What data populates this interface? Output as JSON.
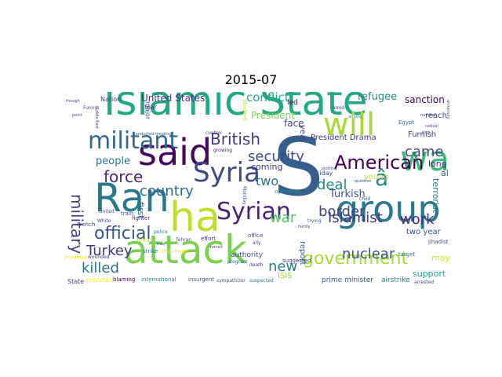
{
  "title": "2015-07",
  "words": [
    {
      "text": "Islamic State",
      "color": "#22a884"
    },
    {
      "text": "said",
      "color": "#46085c"
    },
    {
      "text": "S",
      "color": "#35608d"
    },
    {
      "text": "group",
      "color": "#2a788e"
    },
    {
      "text": "attack",
      "color": "#7ad151"
    },
    {
      "text": "ha",
      "color": "#bddf26"
    },
    {
      "text": "Ran",
      "color": "#2a788e"
    },
    {
      "text": "wa",
      "color": "#3cbb75"
    },
    {
      "text": "will",
      "color": "#a5db36"
    },
    {
      "text": "militant",
      "color": "#31688e"
    },
    {
      "text": "Syria",
      "color": "#3e4989"
    },
    {
      "text": "Syrian",
      "color": "#482475"
    },
    {
      "text": "American",
      "color": "#440154"
    },
    {
      "text": "government",
      "color": "#a5db36"
    },
    {
      "text": "official",
      "color": "#39568c"
    },
    {
      "text": "military",
      "color": "#433e85"
    },
    {
      "text": "security",
      "color": "#3e4989"
    },
    {
      "text": "British",
      "color": "#443a83"
    },
    {
      "text": "force",
      "color": "#482878"
    },
    {
      "text": "country",
      "color": "#31688e"
    },
    {
      "text": "Islamist",
      "color": "#443a83"
    },
    {
      "text": "border",
      "color": "#404588"
    },
    {
      "text": "killed",
      "color": "#2c718e"
    },
    {
      "text": "Turkey",
      "color": "#453781"
    },
    {
      "text": "nuclear",
      "color": "#3b528b"
    },
    {
      "text": "work",
      "color": "#472c7a"
    },
    {
      "text": "deal",
      "color": "#23898e"
    },
    {
      "text": "came",
      "color": "#404588"
    },
    {
      "text": "war",
      "color": "#52c569"
    },
    {
      "text": "new",
      "color": "#287c8e"
    },
    {
      "text": "two",
      "color": "#2d708e"
    },
    {
      "text": "â",
      "color": "#24868e"
    },
    {
      "text": "United States",
      "color": "#46327e"
    },
    {
      "text": "conflict",
      "color": "#21a685"
    },
    {
      "text": "people",
      "color": "#2c728e"
    },
    {
      "text": "refugee",
      "color": "#21918c"
    },
    {
      "text": "sanction",
      "color": "#440154"
    },
    {
      "text": "Turkish",
      "color": "#3b528b"
    },
    {
      "text": "President",
      "color": "#7ad151"
    },
    {
      "text": "support",
      "color": "#20a486"
    },
    {
      "text": "may",
      "color": "#d8e219"
    },
    {
      "text": "long",
      "color": "#46337f"
    },
    {
      "text": "face",
      "color": "#3e4c8a"
    },
    {
      "text": "reach",
      "color": "#3e4c8a"
    },
    {
      "text": "two year",
      "color": "#3b528b"
    },
    {
      "text": "coming",
      "color": "#443a83"
    },
    {
      "text": "ISIS",
      "color": "#a0da39"
    },
    {
      "text": "report",
      "color": "#31688e"
    },
    {
      "text": "first",
      "color": "#2d708e"
    },
    {
      "text": "Furnish",
      "color": "#433e85"
    },
    {
      "text": "terrorist",
      "color": "#2a788e"
    },
    {
      "text": "year",
      "color": "#404588"
    },
    {
      "text": "young",
      "color": "#b5de2b"
    },
    {
      "text": "al",
      "color": "#3b528b"
    },
    {
      "text": "President Drama",
      "color": "#46327e"
    },
    {
      "text": "Friday",
      "color": "#3b528b"
    },
    {
      "text": "Nation",
      "color": "#433e85"
    },
    {
      "text": "fear",
      "color": "#46337f"
    },
    {
      "text": "major",
      "color": "#3e4989"
    },
    {
      "text": "authority",
      "color": "#3b528b"
    },
    {
      "text": "airstrike",
      "color": "#287c8e"
    },
    {
      "text": "prime minister",
      "color": "#365c8d"
    },
    {
      "text": "reported",
      "color": "#fde725"
    },
    {
      "text": "blaming",
      "color": "#46085c"
    },
    {
      "text": "international",
      "color": "#26828e"
    },
    {
      "text": "insurgent",
      "color": "#3b528b"
    },
    {
      "text": "sympathizer",
      "color": "#365c8d"
    },
    {
      "text": "suspected",
      "color": "#2c728e"
    },
    {
      "text": "arrested",
      "color": "#3e4989"
    },
    {
      "text": "State",
      "color": "#3e4989"
    },
    {
      "text": "Britain",
      "color": "#b5de2b"
    },
    {
      "text": "French",
      "color": "#3e4989"
    },
    {
      "text": "strike",
      "color": "#2c728e"
    },
    {
      "text": "Province",
      "color": "#fde725"
    },
    {
      "text": "wounded",
      "color": "#3e4989"
    },
    {
      "text": "suggested",
      "color": "#433e85"
    },
    {
      "text": "jihadist",
      "color": "#3b528b"
    },
    {
      "text": "target",
      "color": "#2a788e"
    },
    {
      "text": "Egypt",
      "color": "#2c728e"
    },
    {
      "text": "student",
      "color": "#bddf26"
    },
    {
      "text": "led",
      "color": "#440154"
    },
    {
      "text": "train",
      "color": "#3b528b"
    },
    {
      "text": "effort",
      "color": "#46337f"
    },
    {
      "text": "challenge",
      "color": "#fde725"
    },
    {
      "text": "fighter",
      "color": "#46327e"
    },
    {
      "text": "police",
      "color": "#2a788e"
    },
    {
      "text": "Tehran",
      "color": "#3e4989"
    },
    {
      "text": "death",
      "color": "#433e85"
    },
    {
      "text": "ally",
      "color": "#404588"
    },
    {
      "text": "office",
      "color": "#3b528b"
    },
    {
      "text": "program",
      "color": "#31688e"
    },
    {
      "text": "operation",
      "color": "#21918c"
    },
    {
      "text": "Monday",
      "color": "#3b528b"
    },
    {
      "text": "growing",
      "color": "#482878"
    },
    {
      "text": "control",
      "color": "#3e4989"
    },
    {
      "text": "conducted meeting",
      "color": "#3b528b"
    },
    {
      "text": "Funny",
      "color": "#433e85"
    },
    {
      "text": "point",
      "color": "#3e4989"
    },
    {
      "text": "child",
      "color": "#3b528b"
    },
    {
      "text": "number",
      "color": "#3e4989"
    },
    {
      "text": "radical",
      "color": "#3e4989"
    },
    {
      "text": "university",
      "color": "#433e85"
    },
    {
      "text": "family",
      "color": "#3e4989"
    },
    {
      "text": "question",
      "color": "#3b528b"
    },
    {
      "text": "plotting",
      "color": "#3e4989"
    },
    {
      "text": "amid",
      "color": "#3e4989"
    },
    {
      "text": "among",
      "color": "#2c728e"
    },
    {
      "text": "Middle East",
      "color": "#3e4989"
    },
    {
      "text": "United",
      "color": "#3b528b"
    },
    {
      "text": "White",
      "color": "#3e4989"
    },
    {
      "text": "trying",
      "color": "#3b528b"
    },
    {
      "text": "forced",
      "color": "#3e4989"
    },
    {
      "text": "part",
      "color": "#3e4989"
    },
    {
      "text": "though",
      "color": "#3e4989"
    },
    {
      "text": "Iraq",
      "color": "#3e4989"
    }
  ]
}
